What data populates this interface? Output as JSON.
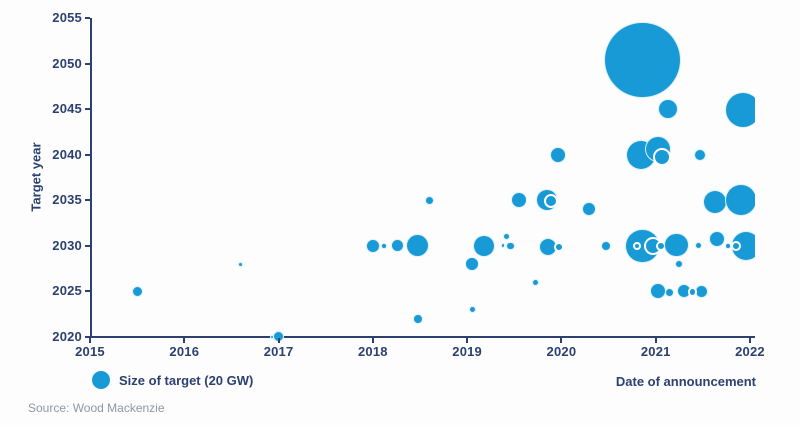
{
  "chart_data": {
    "type": "scatter",
    "subtype": "bubble",
    "title": "",
    "xlabel": "Date of announcement",
    "ylabel": "Target year",
    "xlim": [
      2015,
      2022
    ],
    "ylim": [
      2020,
      2055
    ],
    "x_ticks": [
      2015,
      2016,
      2017,
      2018,
      2019,
      2020,
      2021,
      2022
    ],
    "y_ticks": [
      2020,
      2025,
      2030,
      2035,
      2040,
      2045,
      2050,
      2055
    ],
    "grid": false,
    "legend": {
      "label": "Size of target (20 GW)",
      "reference_gw": 20,
      "position": "bottom-left"
    },
    "source": "Source: Wood Mackenzie",
    "colors": {
      "bubble": "#189AD6",
      "axis": "#2C4170",
      "text": "#2C4170",
      "source_text": "#8D96A8",
      "background": "#FDFDFE"
    },
    "points": [
      {
        "x": 2015.5,
        "y": 2025.0,
        "gw": 7.5
      },
      {
        "x": 2016.6,
        "y": 2028.0,
        "gw": 1.5
      },
      {
        "x": 2016.93,
        "y": 2020.0,
        "gw": 1.5
      },
      {
        "x": 2017.0,
        "y": 2020.1,
        "gw": 7.5
      },
      {
        "x": 2018.0,
        "y": 2030.0,
        "gw": 12
      },
      {
        "x": 2018.12,
        "y": 2030.0,
        "gw": 2
      },
      {
        "x": 2018.26,
        "y": 2030.0,
        "gw": 10.5
      },
      {
        "x": 2018.47,
        "y": 2030.0,
        "gw": 32.5
      },
      {
        "x": 2018.48,
        "y": 2022.0,
        "gw": 6
      },
      {
        "x": 2018.6,
        "y": 2035.0,
        "gw": 5
      },
      {
        "x": 2019.05,
        "y": 2028.0,
        "gw": 12
      },
      {
        "x": 2019.06,
        "y": 2023.0,
        "gw": 3
      },
      {
        "x": 2019.18,
        "y": 2030.0,
        "gw": 30
      },
      {
        "x": 2019.38,
        "y": 2030.0,
        "gw": 1.5
      },
      {
        "x": 2019.42,
        "y": 2031.0,
        "gw": 3
      },
      {
        "x": 2019.46,
        "y": 2030.0,
        "gw": 4
      },
      {
        "x": 2019.55,
        "y": 2035.0,
        "gw": 16
      },
      {
        "x": 2019.73,
        "y": 2026.0,
        "gw": 3
      },
      {
        "x": 2019.85,
        "y": 2035.0,
        "gw": 30
      },
      {
        "x": 2019.89,
        "y": 2034.9,
        "gw": 12,
        "ring": true
      },
      {
        "x": 2019.86,
        "y": 2029.9,
        "gw": 20
      },
      {
        "x": 2019.97,
        "y": 2029.9,
        "gw": 6,
        "ring": true
      },
      {
        "x": 2019.96,
        "y": 2040.0,
        "gw": 16
      },
      {
        "x": 2020.29,
        "y": 2034.0,
        "gw": 12
      },
      {
        "x": 2020.47,
        "y": 2030.0,
        "gw": 6
      },
      {
        "x": 2020.86,
        "y": 2050.4,
        "gw": 357
      },
      {
        "x": 2020.84,
        "y": 2040.0,
        "gw": 56
      },
      {
        "x": 2021.02,
        "y": 2040.6,
        "gw": 42
      },
      {
        "x": 2021.07,
        "y": 2039.8,
        "gw": 20,
        "ring": true
      },
      {
        "x": 2021.13,
        "y": 2045.0,
        "gw": 25
      },
      {
        "x": 2021.47,
        "y": 2040.0,
        "gw": 9
      },
      {
        "x": 2020.86,
        "y": 2030.0,
        "gw": 72
      },
      {
        "x": 2020.8,
        "y": 2030.0,
        "gw": 4,
        "ring": true
      },
      {
        "x": 2020.97,
        "y": 2030.0,
        "gw": 20,
        "ring": true
      },
      {
        "x": 2021.06,
        "y": 2030.0,
        "gw": 6,
        "ring": true
      },
      {
        "x": 2021.22,
        "y": 2030.1,
        "gw": 36
      },
      {
        "x": 2021.45,
        "y": 2030.0,
        "gw": 3
      },
      {
        "x": 2021.65,
        "y": 2030.8,
        "gw": 16
      },
      {
        "x": 2021.77,
        "y": 2030.0,
        "gw": 2
      },
      {
        "x": 2021.96,
        "y": 2030.0,
        "gw": 56
      },
      {
        "x": 2021.85,
        "y": 2030.0,
        "gw": 6,
        "ring": true
      },
      {
        "x": 2021.25,
        "y": 2028.0,
        "gw": 4
      },
      {
        "x": 2021.02,
        "y": 2025.0,
        "gw": 16
      },
      {
        "x": 2021.15,
        "y": 2024.9,
        "gw": 5
      },
      {
        "x": 2021.3,
        "y": 2025.0,
        "gw": 12
      },
      {
        "x": 2021.49,
        "y": 2025.0,
        "gw": 10.5
      },
      {
        "x": 2021.39,
        "y": 2024.9,
        "gw": 6,
        "ring": true
      },
      {
        "x": 2021.63,
        "y": 2034.8,
        "gw": 36
      },
      {
        "x": 2021.9,
        "y": 2035.0,
        "gw": 63
      },
      {
        "x": 2021.93,
        "y": 2044.9,
        "gw": 80
      }
    ]
  }
}
